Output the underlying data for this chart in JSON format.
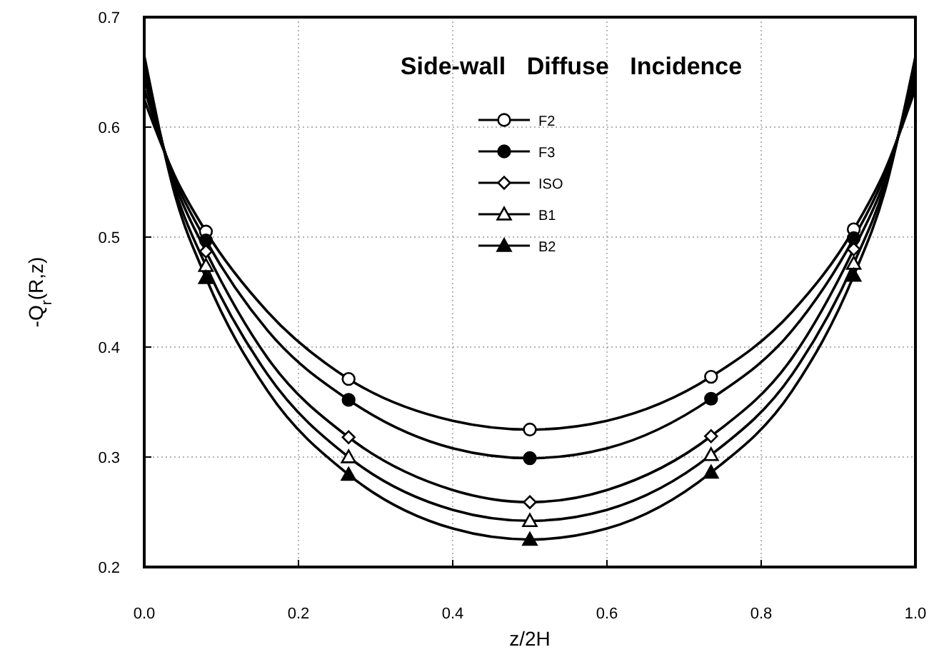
{
  "chart_data": {
    "type": "line",
    "title": "Side-wall Diffuse Incidence",
    "xlabel": "z/2H",
    "ylabel": "-Q$_{r}$(R,z)",
    "x": [
      0,
      0.04,
      0.08,
      0.16,
      0.265,
      0.4,
      0.5,
      0.6,
      0.735,
      0.84,
      0.92,
      0.96,
      1.0
    ],
    "xlim": [
      0,
      1
    ],
    "ylim": [
      0.2,
      0.7
    ],
    "xticks": [
      {
        "value": 0,
        "label": "0.0"
      },
      0.2,
      0.4,
      0.6,
      0.8,
      {
        "value": 1,
        "label": "1.0"
      }
    ],
    "yticks": [
      0.2,
      0.3,
      0.4,
      0.5,
      0.6,
      0.7
    ],
    "grid": true,
    "legend": "top",
    "line_style": "solid",
    "series": [
      {
        "color": "#000000",
        "marker": "none",
        "values": [
          0.625,
          0.555,
          0.505,
          0.432,
          0.371,
          0.333,
          0.325,
          0.333,
          0.373,
          0.432,
          0.507,
          0.56,
          0.635
        ]
      },
      {
        "color": "#000000",
        "marker": "none",
        "values": [
          0.635,
          0.552,
          0.497,
          0.415,
          0.352,
          0.308,
          0.299,
          0.308,
          0.353,
          0.415,
          0.499,
          0.556,
          0.642
        ]
      },
      {
        "color": "#000000",
        "marker": "none",
        "values": [
          0.645,
          0.548,
          0.487,
          0.39,
          0.318,
          0.27,
          0.259,
          0.27,
          0.319,
          0.39,
          0.489,
          0.551,
          0.65
        ]
      },
      {
        "color": "#000000",
        "marker": "none",
        "values": [
          0.655,
          0.543,
          0.474,
          0.375,
          0.3,
          0.252,
          0.242,
          0.252,
          0.302,
          0.375,
          0.476,
          0.546,
          0.657
        ]
      },
      {
        "color": "#000000",
        "marker": "none",
        "values": [
          0.665,
          0.538,
          0.463,
          0.36,
          0.284,
          0.235,
          0.225,
          0.235,
          0.286,
          0.36,
          0.465,
          0.541,
          0.664
        ]
      },
      {
        "type": "scatter",
        "name": "F2",
        "color": "#ffffff",
        "marker": "circle",
        "x": [
          0.08,
          0.265,
          0.5,
          0.735,
          0.92
        ],
        "values": [
          0.505,
          0.371,
          0.325,
          0.373,
          0.507
        ]
      },
      {
        "type": "scatter",
        "name": "F3",
        "color": "#000000",
        "marker": "circle",
        "x": [
          0.08,
          0.265,
          0.5,
          0.735,
          0.92
        ],
        "values": [
          0.497,
          0.352,
          0.299,
          0.353,
          0.499
        ]
      },
      {
        "type": "scatter",
        "name": "ISO",
        "color": "#ffffff",
        "marker": "diamond",
        "x": [
          0.08,
          0.265,
          0.5,
          0.735,
          0.92
        ],
        "values": [
          0.487,
          0.318,
          0.259,
          0.319,
          0.489
        ]
      },
      {
        "type": "scatter",
        "name": "B1",
        "color": "#ffffff",
        "marker": "triangle",
        "x": [
          0.08,
          0.265,
          0.5,
          0.735,
          0.92
        ],
        "values": [
          0.474,
          0.3,
          0.242,
          0.302,
          0.476
        ]
      },
      {
        "type": "scatter",
        "name": "B2",
        "color": "#000000",
        "marker": "triangle",
        "x": [
          0.08,
          0.265,
          0.5,
          0.735,
          0.92
        ],
        "values": [
          0.463,
          0.284,
          0.225,
          0.286,
          0.465
        ]
      }
    ]
  }
}
